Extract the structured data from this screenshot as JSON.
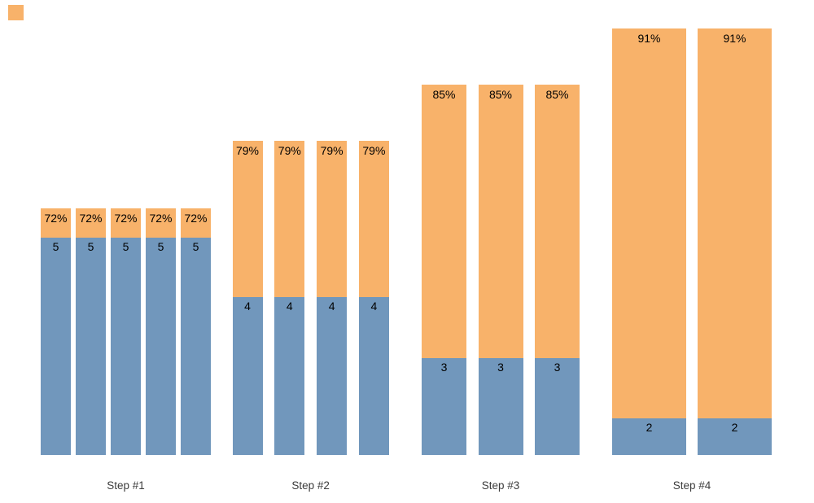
{
  "colors": {
    "orange": "#F8B26A",
    "blue": "#7197BC",
    "value_label_text": "#000000",
    "step_label_text": "#3C3C3C",
    "background": "#FFFFFF"
  },
  "decorations": {
    "corner_swatch": "orange-square"
  },
  "chart_data": {
    "type": "bar",
    "subtype": "grouped-stacked-funnel",
    "title": "",
    "xlabel": "",
    "ylabel": "",
    "legend": "none",
    "grid": false,
    "axes_visible": false,
    "categories": [
      "Step #1",
      "Step #2",
      "Step #3",
      "Step #4"
    ],
    "series": [
      {
        "name": "count (blue bottom segment)",
        "values": [
          5,
          4,
          3,
          2
        ],
        "color": "#7197BC"
      },
      {
        "name": "percent (orange top segment)",
        "values": [
          72,
          79,
          85,
          91
        ],
        "color": "#F8B26A"
      }
    ],
    "groups": [
      {
        "step_label": "Step #1",
        "bar_count": 5,
        "count_label": "5",
        "count_value": 5,
        "percent_label": "72%",
        "percent_value": 72
      },
      {
        "step_label": "Step #2",
        "bar_count": 4,
        "count_label": "4",
        "count_value": 4,
        "percent_label": "79%",
        "percent_value": 79
      },
      {
        "step_label": "Step #3",
        "bar_count": 3,
        "count_label": "3",
        "count_value": 3,
        "percent_label": "85%",
        "percent_value": 85
      },
      {
        "step_label": "Step #4",
        "bar_count": 2,
        "count_label": "2",
        "count_value": 2,
        "percent_label": "91%",
        "percent_value": 91
      }
    ]
  }
}
